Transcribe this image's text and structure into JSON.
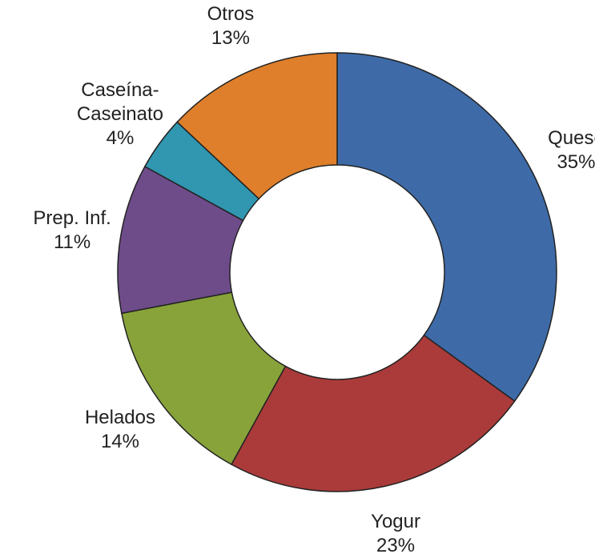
{
  "chart_data": {
    "type": "donut",
    "categories": [
      "Queso",
      "Yogur",
      "Helados",
      "Prep. Inf.",
      "Caseína-Caseinato",
      "Otros"
    ],
    "values": [
      35,
      23,
      14,
      11,
      4,
      13
    ],
    "value_labels": [
      "35%",
      "23%",
      "14%",
      "11%",
      "4%",
      "13%"
    ],
    "colors": [
      "#3e6ba8",
      "#aa3b3a",
      "#88a33a",
      "#6e4c89",
      "#3196b0",
      "#df7f2b"
    ]
  }
}
